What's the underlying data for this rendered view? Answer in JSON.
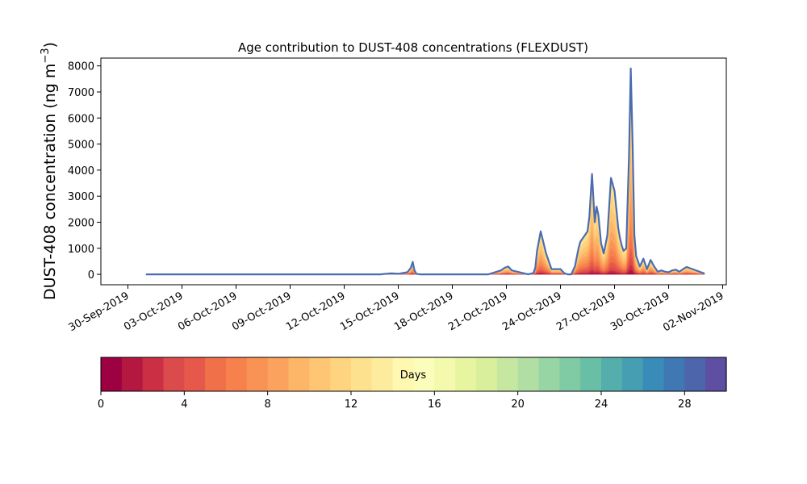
{
  "chart_data": {
    "type": "area",
    "title": "Age contribution to DUST-408 concentrations (FLEXDUST)",
    "ylabel": "DUST-408 concentration (ng m",
    "ylabel_sup": "−3",
    "ylabel_close": ")",
    "xlabel": "",
    "ylim": [
      -400,
      8300
    ],
    "y_ticks": [
      0,
      1000,
      2000,
      3000,
      4000,
      5000,
      6000,
      7000,
      8000
    ],
    "x_range_days": [
      -1.5,
      33.2
    ],
    "x_axis_start_date": "30-Sep-2019",
    "x_ticks": [
      {
        "day": 0,
        "label": "30-Sep-2019"
      },
      {
        "day": 3,
        "label": "03-Oct-2019"
      },
      {
        "day": 6,
        "label": "06-Oct-2019"
      },
      {
        "day": 9,
        "label": "09-Oct-2019"
      },
      {
        "day": 12,
        "label": "12-Oct-2019"
      },
      {
        "day": 15,
        "label": "15-Oct-2019"
      },
      {
        "day": 18,
        "label": "18-Oct-2019"
      },
      {
        "day": 21,
        "label": "21-Oct-2019"
      },
      {
        "day": 24,
        "label": "24-Oct-2019"
      },
      {
        "day": 27,
        "label": "27-Oct-2019"
      },
      {
        "day": 30,
        "label": "30-Oct-2019"
      },
      {
        "day": 33,
        "label": "02-Nov-2019"
      }
    ],
    "total_series": {
      "name": "",
      "x": [
        1,
        14.0,
        14.6,
        15.0,
        15.5,
        15.7,
        15.8,
        15.9,
        16.0,
        16.2,
        20.0,
        20.7,
        20.9,
        21.1,
        21.3,
        22.2,
        22.5,
        22.6,
        22.7,
        22.9,
        23.2,
        23.5,
        24.0,
        24.2,
        24.4,
        24.6,
        24.8,
        25.0,
        25.1,
        25.2,
        25.35,
        25.5,
        25.6,
        25.75,
        25.9,
        26.0,
        26.1,
        26.25,
        26.4,
        26.6,
        26.8,
        27.0,
        27.1,
        27.2,
        27.3,
        27.4,
        27.5,
        27.65,
        27.8,
        27.9,
        28.0,
        28.1,
        28.2,
        28.4,
        28.6,
        28.8,
        29.0,
        29.2,
        29.4,
        29.6,
        29.8,
        30.0,
        30.2,
        30.4,
        30.6,
        30.8,
        31.0,
        32.0
      ],
      "y": [
        0,
        0,
        40,
        20,
        80,
        250,
        480,
        150,
        20,
        0,
        0,
        150,
        250,
        300,
        150,
        0,
        50,
        250,
        900,
        1650,
        800,
        200,
        200,
        50,
        0,
        0,
        300,
        1000,
        1250,
        1350,
        1500,
        1650,
        2200,
        3850,
        2000,
        2600,
        2300,
        1200,
        800,
        1500,
        3700,
        3200,
        2500,
        1800,
        1400,
        1100,
        900,
        1000,
        4500,
        7900,
        5000,
        1500,
        700,
        300,
        600,
        200,
        550,
        300,
        100,
        150,
        100,
        80,
        150,
        180,
        100,
        200,
        280,
        30
      ]
    },
    "age_days_shown": [
      0,
      30
    ],
    "colorbar": {
      "label": "Days",
      "ticks": [
        0,
        4,
        8,
        12,
        16,
        20,
        24,
        28
      ],
      "range": [
        0,
        30
      ],
      "n_bins": 30,
      "colormap": "Spectral",
      "colors": [
        "#9e0142",
        "#b4173f",
        "#cb2f44",
        "#dc4b4b",
        "#e6594a",
        "#f0704a",
        "#f7814c",
        "#f99255",
        "#fba35e",
        "#fdb567",
        "#fdc574",
        "#fed481",
        "#fee18f",
        "#feec9e",
        "#fff8b0",
        "#fbfdba",
        "#f3faae",
        "#e7f5a0",
        "#d9ef9b",
        "#c6e79f",
        "#b1dfa3",
        "#98d5a4",
        "#80cba4",
        "#69bfa5",
        "#55aeab",
        "#469eb2",
        "#3a8cb8",
        "#3f78b2",
        "#4c65ab",
        "#5e4fa2"
      ]
    },
    "outline_color": "#4a6db0",
    "grid": false,
    "legend": "none"
  }
}
